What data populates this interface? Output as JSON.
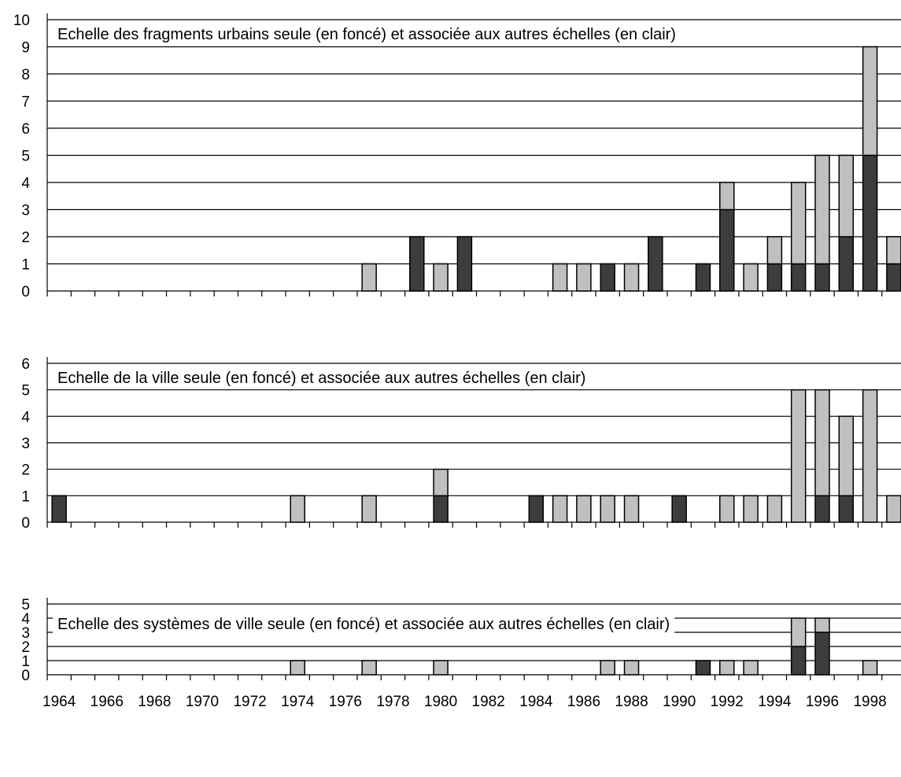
{
  "colors": {
    "dark": "#3d3d3d",
    "light": "#c0c0c0",
    "axis": "#000000",
    "background": "#ffffff"
  },
  "chart_data": [
    {
      "type": "bar",
      "stacked": true,
      "title": "Echelle des fragments urbains seule (en foncé) et associée aux autres échelles (en clair)",
      "ylim": [
        0,
        10
      ],
      "yticks": [
        "0",
        "1",
        "2",
        "3",
        "4",
        "5",
        "6",
        "7",
        "8",
        "9",
        "10"
      ],
      "grid": true,
      "categories": [
        "1964",
        "1965",
        "1966",
        "1967",
        "1968",
        "1969",
        "1970",
        "1971",
        "1972",
        "1973",
        "1974",
        "1975",
        "1976",
        "1977",
        "1978",
        "1979",
        "1980",
        "1981",
        "1982",
        "1983",
        "1984",
        "1985",
        "1986",
        "1987",
        "1988",
        "1989",
        "1990",
        "1991",
        "1992",
        "1993",
        "1994",
        "1995",
        "1996",
        "1997",
        "1998",
        "1999"
      ],
      "series": [
        {
          "values": [
            0,
            0,
            0,
            0,
            0,
            0,
            0,
            0,
            0,
            0,
            0,
            0,
            0,
            0,
            0,
            2,
            0,
            2,
            0,
            0,
            0,
            0,
            0,
            1,
            0,
            2,
            0,
            1,
            3,
            0,
            1,
            1,
            1,
            2,
            5,
            1
          ]
        },
        {
          "values": [
            0,
            0,
            0,
            0,
            0,
            0,
            0,
            0,
            0,
            0,
            0,
            0,
            0,
            1,
            0,
            0,
            1,
            0,
            0,
            0,
            0,
            1,
            1,
            0,
            1,
            0,
            0,
            0,
            1,
            1,
            1,
            3,
            4,
            3,
            4,
            1
          ]
        }
      ]
    },
    {
      "type": "bar",
      "stacked": true,
      "title": "Echelle de la ville seule (en foncé) et associée aux autres échelles (en clair)",
      "ylim": [
        0,
        6
      ],
      "yticks": [
        "0",
        "1",
        "2",
        "3",
        "4",
        "5",
        "6"
      ],
      "grid": true,
      "categories": [
        "1964",
        "1965",
        "1966",
        "1967",
        "1968",
        "1969",
        "1970",
        "1971",
        "1972",
        "1973",
        "1974",
        "1975",
        "1976",
        "1977",
        "1978",
        "1979",
        "1980",
        "1981",
        "1982",
        "1983",
        "1984",
        "1985",
        "1986",
        "1987",
        "1988",
        "1989",
        "1990",
        "1991",
        "1992",
        "1993",
        "1994",
        "1995",
        "1996",
        "1997",
        "1998",
        "1999"
      ],
      "series": [
        {
          "values": [
            1,
            0,
            0,
            0,
            0,
            0,
            0,
            0,
            0,
            0,
            0,
            0,
            0,
            0,
            0,
            0,
            1,
            0,
            0,
            0,
            1,
            0,
            0,
            0,
            0,
            0,
            1,
            0,
            0,
            0,
            0,
            0,
            1,
            1,
            0,
            0
          ]
        },
        {
          "values": [
            0,
            0,
            0,
            0,
            0,
            0,
            0,
            0,
            0,
            0,
            1,
            0,
            0,
            1,
            0,
            0,
            1,
            0,
            0,
            0,
            0,
            1,
            1,
            1,
            1,
            0,
            0,
            0,
            1,
            1,
            1,
            5,
            4,
            3,
            5,
            1
          ]
        }
      ]
    },
    {
      "type": "bar",
      "stacked": true,
      "title": "Echelle des systèmes de ville seule (en foncé) et associée aux autres échelles (en clair)",
      "ylim": [
        0,
        5
      ],
      "yticks": [
        "0",
        "1",
        "2",
        "3",
        "4",
        "5"
      ],
      "grid": true,
      "categories": [
        "1964",
        "1965",
        "1966",
        "1967",
        "1968",
        "1969",
        "1970",
        "1971",
        "1972",
        "1973",
        "1974",
        "1975",
        "1976",
        "1977",
        "1978",
        "1979",
        "1980",
        "1981",
        "1982",
        "1983",
        "1984",
        "1985",
        "1986",
        "1987",
        "1988",
        "1989",
        "1990",
        "1991",
        "1992",
        "1993",
        "1994",
        "1995",
        "1996",
        "1997",
        "1998",
        "1999"
      ],
      "series": [
        {
          "values": [
            0,
            0,
            0,
            0,
            0,
            0,
            0,
            0,
            0,
            0,
            0,
            0,
            0,
            0,
            0,
            0,
            0,
            0,
            0,
            0,
            0,
            0,
            0,
            0,
            0,
            0,
            0,
            1,
            0,
            0,
            0,
            2,
            3,
            0,
            0,
            0
          ]
        },
        {
          "values": [
            0,
            0,
            0,
            0,
            0,
            0,
            0,
            0,
            0,
            0,
            1,
            0,
            0,
            1,
            0,
            0,
            1,
            0,
            0,
            0,
            0,
            0,
            0,
            1,
            1,
            0,
            0,
            0,
            1,
            1,
            0,
            2,
            1,
            0,
            1,
            0
          ]
        }
      ]
    }
  ],
  "xaxis_labels": [
    "1964",
    "1966",
    "1968",
    "1970",
    "1972",
    "1974",
    "1976",
    "1978",
    "1980",
    "1982",
    "1984",
    "1986",
    "1988",
    "1990",
    "1992",
    "1994",
    "1996",
    "1998"
  ]
}
